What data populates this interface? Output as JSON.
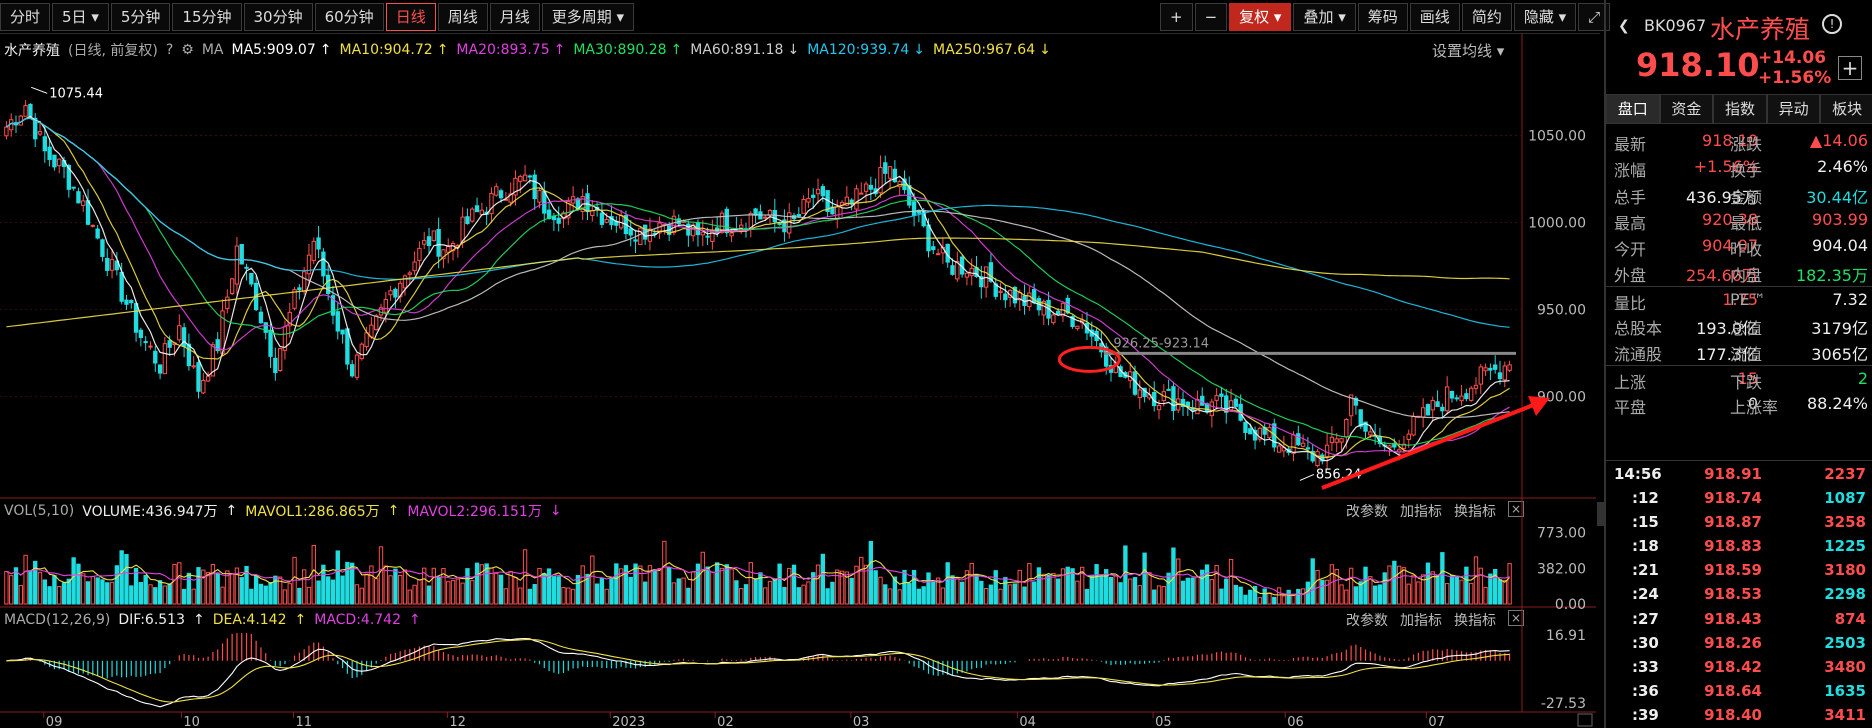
{
  "toolbar": {
    "periods": [
      "分时",
      "5日 ▾",
      "5分钟",
      "15分钟",
      "30分钟",
      "60分钟",
      "日线",
      "周线",
      "月线",
      "更多周期 ▾"
    ],
    "active_period": "日线",
    "plus": "+",
    "minus": "−",
    "fuquan": "复权 ▾",
    "diejia": "叠加 ▾",
    "chouma": "筹码",
    "huaxian": "画线",
    "jianyue": "简约",
    "yincang": "隐藏 ▾"
  },
  "info": {
    "name": "水产养殖",
    "mode": "(日线, 前复权)",
    "ma": "MA",
    "items": [
      {
        "text": "MA5:909.07",
        "color": "#ffffff",
        "arrow": "↑"
      },
      {
        "text": "MA10:904.72",
        "color": "#f0e040",
        "arrow": "↑"
      },
      {
        "text": "MA20:893.75",
        "color": "#e040e0",
        "arrow": "↑"
      },
      {
        "text": "MA30:890.28",
        "color": "#20e060",
        "arrow": "↑"
      },
      {
        "text": "MA60:891.18",
        "color": "#cccccc",
        "arrow": "↓"
      },
      {
        "text": "MA120:939.74",
        "color": "#1fc8f0",
        "arrow": "↓"
      },
      {
        "text": "MA250:967.64",
        "color": "#f0e040",
        "arrow": "↓"
      }
    ],
    "setting": "设置均线 ▾"
  },
  "vol_header": {
    "label": "VOL(5,10)",
    "volume": "VOLUME:436.947万",
    "mavol1": "MAVOL1:286.865万",
    "mavol2": "MAVOL2:296.151万"
  },
  "macd_header": {
    "label": "MACD(12,26,9)",
    "dif": "DIF:6.513",
    "dea": "DEA:4.142",
    "macd": "MACD:4.742"
  },
  "pane_buttons": [
    "改参数",
    "加指标",
    "换指标"
  ],
  "close_icon": "×",
  "colors": {
    "up": "#ff4d4d",
    "down": "#1fdde0",
    "bg": "#000000"
  },
  "chart_data": [
    {
      "type": "candlestick",
      "title": "水产养殖",
      "y_ticks": [
        1050.0,
        1000.0,
        950.0,
        900.0
      ],
      "ylim": [
        845,
        1090
      ],
      "x_tick_labels": [
        "09",
        "10",
        "11",
        "12",
        "2023",
        "02",
        "03",
        "04",
        "05",
        "06",
        "07"
      ],
      "annotations": {
        "high": "1075.44",
        "low": "856.24",
        "level": "926.25-923.14",
        "level_value": 924.7
      },
      "series": [
        {
          "name": "MA5",
          "color": "#ffffff"
        },
        {
          "name": "MA10",
          "color": "#f0e040"
        },
        {
          "name": "MA20",
          "color": "#e040e0"
        },
        {
          "name": "MA30",
          "color": "#20e060"
        },
        {
          "name": "MA60",
          "color": "#cccccc"
        },
        {
          "name": "MA120",
          "color": "#1fc8f0"
        },
        {
          "name": "MA250",
          "color": "#f0e040"
        }
      ],
      "close_anchors": [
        [
          0,
          1055
        ],
        [
          4,
          1068
        ],
        [
          8,
          1040
        ],
        [
          12,
          1030
        ],
        [
          16,
          1010
        ],
        [
          20,
          985
        ],
        [
          24,
          960
        ],
        [
          28,
          935
        ],
        [
          32,
          918
        ],
        [
          36,
          940
        ],
        [
          40,
          905
        ],
        [
          44,
          930
        ],
        [
          48,
          985
        ],
        [
          52,
          955
        ],
        [
          56,
          920
        ],
        [
          60,
          955
        ],
        [
          64,
          990
        ],
        [
          68,
          950
        ],
        [
          72,
          915
        ],
        [
          76,
          935
        ],
        [
          80,
          960
        ],
        [
          84,
          975
        ],
        [
          88,
          990
        ],
        [
          92,
          985
        ],
        [
          96,
          1000
        ],
        [
          100,
          1010
        ],
        [
          104,
          1020
        ],
        [
          108,
          1025
        ],
        [
          112,
          1010
        ],
        [
          116,
          1005
        ],
        [
          120,
          1015
        ],
        [
          124,
          1005
        ],
        [
          128,
          1000
        ],
        [
          132,
          995
        ],
        [
          136,
          1000
        ],
        [
          140,
          1000
        ],
        [
          144,
          990
        ],
        [
          148,
          1000
        ],
        [
          152,
          1000
        ],
        [
          156,
          1005
        ],
        [
          160,
          1000
        ],
        [
          164,
          1000
        ],
        [
          168,
          1015
        ],
        [
          172,
          1005
        ],
        [
          176,
          1010
        ],
        [
          180,
          1020
        ],
        [
          184,
          1030
        ],
        [
          188,
          1010
        ],
        [
          192,
          990
        ],
        [
          196,
          975
        ],
        [
          200,
          975
        ],
        [
          204,
          968
        ],
        [
          208,
          960
        ],
        [
          212,
          955
        ],
        [
          216,
          950
        ],
        [
          220,
          948
        ],
        [
          224,
          944
        ],
        [
          228,
          928
        ],
        [
          232,
          912
        ],
        [
          236,
          905
        ],
        [
          240,
          900
        ],
        [
          244,
          898
        ],
        [
          248,
          895
        ],
        [
          252,
          895
        ],
        [
          256,
          890
        ],
        [
          260,
          880
        ],
        [
          264,
          874
        ],
        [
          268,
          872
        ],
        [
          272,
          866
        ],
        [
          276,
          870
        ],
        [
          278,
          878
        ],
        [
          280,
          900
        ],
        [
          282,
          888
        ],
        [
          284,
          875
        ],
        [
          288,
          870
        ],
        [
          292,
          880
        ],
        [
          296,
          890
        ],
        [
          300,
          900
        ],
        [
          304,
          905
        ],
        [
          308,
          912
        ],
        [
          312,
          918
        ]
      ],
      "ma_endpoints": {
        "MA5": 909.07,
        "MA10": 904.72,
        "MA20": 893.75,
        "MA30": 890.28,
        "MA60": 891.18,
        "MA120": 939.74,
        "MA250": 967.64
      }
    },
    {
      "type": "bar",
      "name": "VOL",
      "y_ticks": [
        773.0,
        382.0,
        0.0
      ],
      "ylim": [
        0,
        800
      ],
      "last_volume": 436.947,
      "mavol1": 286.865,
      "mavol2": 296.151
    },
    {
      "type": "bar",
      "name": "MACD",
      "y_ticks": [
        16.91,
        -27.53
      ],
      "ylim": [
        -32,
        20
      ],
      "dif": 6.513,
      "dea": 4.142,
      "macd": 4.742
    }
  ],
  "side": {
    "code": "BK0967",
    "name": "水产养殖",
    "info_icon": "!",
    "price": "918.10",
    "change": "+14.06",
    "pct": "+1.56%",
    "plus": "+",
    "tabs": [
      "盘口",
      "资金",
      "指数",
      "异动",
      "板块"
    ],
    "rows": [
      [
        {
          "t": "最新",
          "c": "grey"
        },
        {
          "t": "918.10",
          "c": "red"
        },
        {
          "t": "涨跌",
          "c": "grey"
        },
        {
          "t": "▲14.06",
          "c": "red"
        }
      ],
      [
        {
          "t": "涨幅",
          "c": "grey"
        },
        {
          "t": "+1.56%",
          "c": "red"
        },
        {
          "t": "换手",
          "c": "grey"
        },
        {
          "t": "2.46%",
          "c": "white"
        }
      ],
      [
        {
          "t": "总手",
          "c": "grey"
        },
        {
          "t": "436.95万",
          "c": "white"
        },
        {
          "t": "金额",
          "c": "grey"
        },
        {
          "t": "30.44亿",
          "c": "cyan"
        }
      ],
      [
        {
          "t": "最高",
          "c": "grey"
        },
        {
          "t": "920.38",
          "c": "red"
        },
        {
          "t": "最低",
          "c": "grey"
        },
        {
          "t": "903.99",
          "c": "red"
        }
      ],
      [
        {
          "t": "今开",
          "c": "grey"
        },
        {
          "t": "904.07",
          "c": "red"
        },
        {
          "t": "昨收",
          "c": "grey"
        },
        {
          "t": "904.04",
          "c": "white"
        }
      ],
      [
        {
          "t": "外盘",
          "c": "grey"
        },
        {
          "t": "254.60万",
          "c": "red"
        },
        {
          "t": "内盘",
          "c": "grey"
        },
        {
          "t": "182.35万",
          "c": "green"
        }
      ],
      [
        {
          "t": "量比",
          "c": "grey"
        },
        {
          "t": "1.75",
          "c": "red"
        },
        {
          "t": "PE™",
          "c": "grey"
        },
        {
          "t": "7.32",
          "c": "white"
        }
      ],
      [
        {
          "t": "总股本",
          "c": "grey"
        },
        {
          "t": "193.0亿",
          "c": "white"
        },
        {
          "t": "总值",
          "c": "grey"
        },
        {
          "t": "3179亿",
          "c": "white"
        }
      ],
      [
        {
          "t": "流通股",
          "c": "grey"
        },
        {
          "t": "177.3亿",
          "c": "white"
        },
        {
          "t": "流值",
          "c": "grey"
        },
        {
          "t": "3065亿",
          "c": "white"
        }
      ],
      [
        {
          "t": "上涨",
          "c": "grey"
        },
        {
          "t": "15",
          "c": "red"
        },
        {
          "t": "下跌",
          "c": "grey"
        },
        {
          "t": "2",
          "c": "green"
        }
      ],
      [
        {
          "t": "平盘",
          "c": "grey"
        },
        {
          "t": "0",
          "c": "white"
        },
        {
          "t": "上涨率",
          "c": "grey"
        },
        {
          "t": "88.24%",
          "c": "white"
        }
      ]
    ],
    "ticks": [
      {
        "time": "14:56",
        "price": "918.91",
        "vol": "2237"
      },
      {
        "time": ":12",
        "price": "918.74",
        "vol": "1087"
      },
      {
        "time": ":15",
        "price": "918.87",
        "vol": "3258"
      },
      {
        "time": ":18",
        "price": "918.83",
        "vol": "1225"
      },
      {
        "time": ":21",
        "price": "918.59",
        "vol": "3180"
      },
      {
        "time": ":24",
        "price": "918.53",
        "vol": "2298"
      },
      {
        "time": ":27",
        "price": "918.43",
        "vol": "874"
      },
      {
        "time": ":30",
        "price": "918.26",
        "vol": "2503"
      },
      {
        "time": ":33",
        "price": "918.42",
        "vol": "3480"
      },
      {
        "time": ":36",
        "price": "918.64",
        "vol": "1635"
      },
      {
        "time": ":39",
        "price": "918.40",
        "vol": "3411"
      }
    ]
  }
}
